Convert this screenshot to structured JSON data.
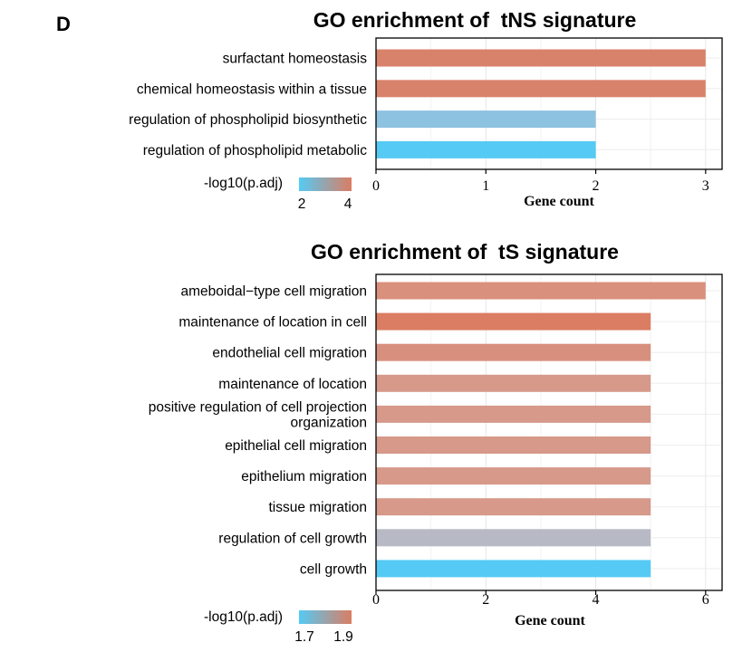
{
  "panel_label": "D",
  "chart_data": [
    {
      "type": "bar",
      "orientation": "horizontal",
      "title": "GO enrichment of  tNS signature",
      "xlabel": "Gene count",
      "ylabel": "",
      "xlim": [
        0,
        3.15
      ],
      "xticks": [
        "0",
        "1",
        "2",
        "3"
      ],
      "grid": true,
      "categories": [
        "surfactant homeostasis",
        "chemical homeostasis within a tissue",
        "regulation of phospholipid biosynthetic",
        "regulation of phospholipid metabolic"
      ],
      "values": [
        3,
        3,
        2,
        2
      ],
      "colors": [
        "#D9826B",
        "#D9826B",
        "#8DC2E0",
        "#55CAF4"
      ],
      "legend": {
        "title": "-log10(p.adj)",
        "min_label": "2",
        "max_label": "4",
        "low_color": "#55CAF4",
        "high_color": "#DB7D63",
        "placement": "bottom-left"
      }
    },
    {
      "type": "bar",
      "orientation": "horizontal",
      "title": "GO enrichment of  tS signature",
      "xlabel": "Gene count",
      "ylabel": "",
      "xlim": [
        0,
        6.3
      ],
      "xticks": [
        "0",
        "2",
        "4",
        "6"
      ],
      "grid": true,
      "categories": [
        "ameboidal−type cell migration",
        "maintenance of location in cell",
        "endothelial cell migration",
        "maintenance of location",
        "positive regulation of cell projection\norganization",
        "epithelial cell migration",
        "epithelium migration",
        "tissue migration",
        "regulation of cell growth",
        "cell growth"
      ],
      "values": [
        6,
        5,
        5,
        5,
        5,
        5,
        5,
        5,
        5,
        5
      ],
      "colors": [
        "#D9907C",
        "#DB7D63",
        "#D8907E",
        "#D6998A",
        "#D6998A",
        "#D6998A",
        "#D6998A",
        "#D6998A",
        "#B7B9C4",
        "#55CAF4"
      ],
      "legend": {
        "title": "-log10(p.adj)",
        "min_label": "1.7",
        "max_label": "1.9",
        "low_color": "#55CAF4",
        "high_color": "#DB7D63",
        "placement": "bottom-left"
      }
    }
  ]
}
